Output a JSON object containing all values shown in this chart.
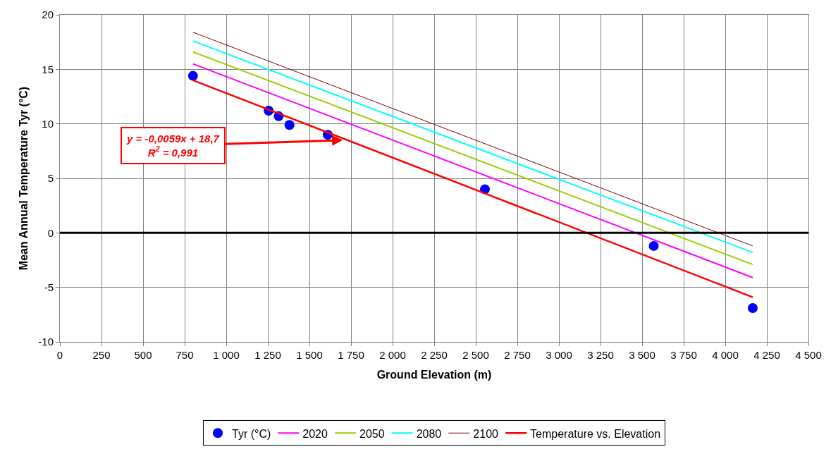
{
  "chart_data": {
    "type": "scatter",
    "xlabel": "Ground Elevation (m)",
    "ylabel": "Mean Annual Temperature Tyr (°C)",
    "xlim": [
      0,
      4500
    ],
    "ylim": [
      -10,
      20
    ],
    "xticks": [
      0,
      250,
      500,
      750,
      {
        "value": 1000,
        "label": "1 000"
      },
      {
        "value": 1250,
        "label": "1 250"
      },
      {
        "value": 1500,
        "label": "1 500"
      },
      {
        "value": 1750,
        "label": "1 750"
      },
      {
        "value": 2000,
        "label": "2 000"
      },
      {
        "value": 2250,
        "label": "2 250"
      },
      {
        "value": 2500,
        "label": "2 500"
      },
      {
        "value": 2750,
        "label": "2 750"
      },
      {
        "value": 3000,
        "label": "3 000"
      },
      {
        "value": 3250,
        "label": "3 250"
      },
      {
        "value": 3500,
        "label": "3 500"
      },
      {
        "value": 3750,
        "label": "3 750"
      },
      {
        "value": 4000,
        "label": "4 000"
      },
      {
        "value": 4250,
        "label": "4 250"
      },
      {
        "value": 4500,
        "label": "4 500"
      }
    ],
    "yticks": [
      -10,
      -5,
      0,
      5,
      10,
      15,
      20
    ],
    "grid": true,
    "legend": "bottom",
    "series": [
      {
        "name": "Tyr (°C)",
        "marker": "circle",
        "color": "#0000ff",
        "x": [
          800,
          1255,
          1315,
          1380,
          1610,
          2555,
          3570,
          4165
        ],
        "values": [
          14.4,
          11.2,
          10.7,
          9.9,
          9.0,
          4.0,
          -1.2,
          -6.9
        ]
      },
      {
        "name": "2020",
        "type": "line",
        "color": "#ff00ff",
        "x": [
          800,
          4165
        ],
        "values": [
          15.5,
          -4.1
        ]
      },
      {
        "name": "2050",
        "type": "line",
        "color": "#99cc00",
        "x": [
          800,
          4165
        ],
        "values": [
          16.6,
          -2.9
        ]
      },
      {
        "name": "2080",
        "type": "line",
        "color": "#00ffff",
        "x": [
          800,
          4165
        ],
        "values": [
          17.6,
          -1.8
        ]
      },
      {
        "name": "2100",
        "type": "line",
        "color": "#800000",
        "x": [
          800,
          4165
        ],
        "values": [
          18.4,
          -1.2
        ]
      },
      {
        "name": "Temperature vs. Elevation",
        "type": "line",
        "color": "#ff0000",
        "x": [
          800,
          4165
        ],
        "values": [
          14.0,
          -5.9
        ]
      }
    ],
    "ref_lines": [
      {
        "axis": "y",
        "value": 0,
        "color": "#000000"
      }
    ],
    "annotations": [
      {
        "text": "y = -0,0059x + 18,7\nR$^{2}$ = 0,991",
        "x": 1700,
        "y": 8.5
      }
    ]
  }
}
